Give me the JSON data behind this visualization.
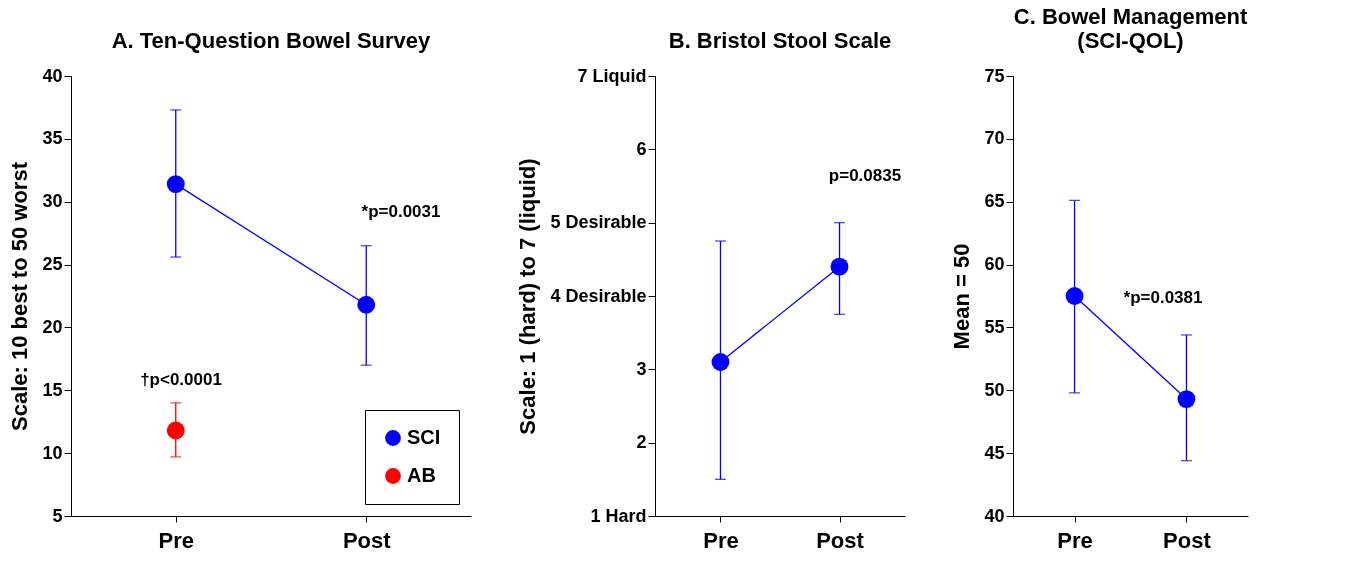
{
  "chart_data": [
    {
      "type": "line",
      "title": "A.  Ten-Question Bowel Survey",
      "ylabel": "Scale:  10 best to 50 worst",
      "categories": [
        "Pre",
        "Post"
      ],
      "ylim": [
        5,
        40
      ],
      "yticks": [
        5,
        10,
        15,
        20,
        25,
        30,
        35,
        40
      ],
      "marker": "circle",
      "legend": "bottom right",
      "grid": false,
      "series": [
        {
          "name": "SCI",
          "color": "#0000ff",
          "values": [
            31.4,
            21.8
          ],
          "errors": [
            [
              25.6,
              37.3
            ],
            [
              17.0,
              26.5
            ]
          ]
        },
        {
          "name": "AB",
          "color": "#ff0000",
          "values": [
            11.8,
            null
          ],
          "errors": [
            [
              9.7,
              14.0
            ],
            null
          ]
        }
      ],
      "annotations": [
        "†p<0.0001",
        "*p=0.0031"
      ]
    },
    {
      "type": "line",
      "title": "B.  Bristol Stool Scale",
      "ylabel": "Scale:  1 (hard)  to 7 (liquid)",
      "categories": [
        "Pre",
        "Post"
      ],
      "ylim": [
        1,
        7
      ],
      "yticks": [
        {
          "value": 1,
          "label": "1 Hard"
        },
        2,
        3,
        {
          "value": 4,
          "label": "4 Desirable"
        },
        {
          "value": 5,
          "label": "5 Desirable"
        },
        6,
        {
          "value": 7,
          "label": "7 Liquid"
        }
      ],
      "marker": "circle",
      "grid": false,
      "series": [
        {
          "color": "#0000ff",
          "values": [
            3.1,
            4.4
          ],
          "errors": [
            [
              1.5,
              4.75
            ],
            [
              3.75,
              5.0
            ]
          ]
        }
      ],
      "annotations": [
        "p=0.0835"
      ]
    },
    {
      "type": "line",
      "title": "C.  Bowel Management\n(SCI-QOL)",
      "ylabel": "Mean = 50",
      "categories": [
        "Pre",
        "Post"
      ],
      "ylim": [
        40,
        75
      ],
      "yticks": [
        40,
        45,
        50,
        55,
        60,
        65,
        70,
        75
      ],
      "marker": "circle",
      "grid": false,
      "series": [
        {
          "color": "#0000ff",
          "values": [
            57.5,
            49.3
          ],
          "errors": [
            [
              49.8,
              65.1
            ],
            [
              44.4,
              54.4
            ]
          ]
        }
      ],
      "annotations": [
        "*p=0.0381"
      ]
    }
  ]
}
